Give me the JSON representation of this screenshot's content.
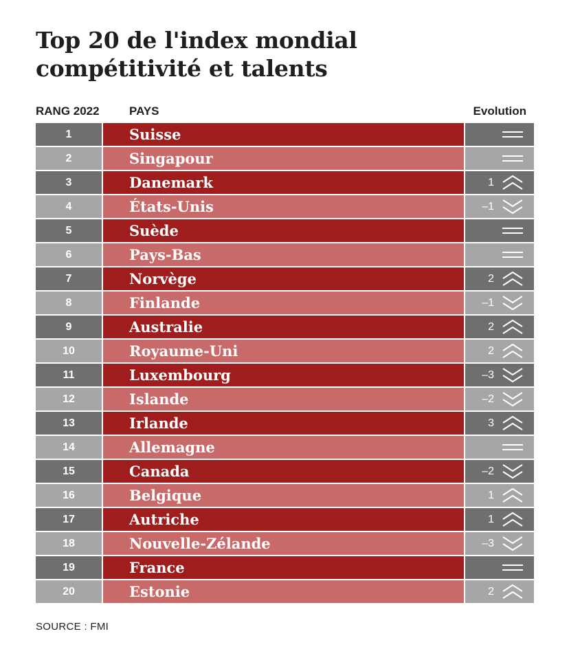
{
  "title_line1": "Top 20 de l'index mondial",
  "title_line2": "compétitivité et talents",
  "headers": {
    "rank": "RANG 2022",
    "country": "PAYS",
    "evolution": "Evolution"
  },
  "source": "SOURCE : FMI",
  "colors": {
    "country_odd": "#a01d1d",
    "country_even": "#c96a6a",
    "gray_odd": "#6f6f6f",
    "gray_even": "#a6a6a6"
  },
  "chart_data": {
    "type": "table",
    "columns": [
      "RANG 2022",
      "PAYS",
      "Evolution"
    ],
    "rows": [
      {
        "rank": "1",
        "country": "Suisse",
        "evolution": "",
        "trend": "same"
      },
      {
        "rank": "2",
        "country": "Singapour",
        "evolution": "",
        "trend": "same"
      },
      {
        "rank": "3",
        "country": "Danemark",
        "evolution": "1",
        "trend": "up"
      },
      {
        "rank": "4",
        "country": "États-Unis",
        "evolution": "–1",
        "trend": "down"
      },
      {
        "rank": "5",
        "country": "Suède",
        "evolution": "",
        "trend": "same"
      },
      {
        "rank": "6",
        "country": "Pays-Bas",
        "evolution": "",
        "trend": "same"
      },
      {
        "rank": "7",
        "country": "Norvège",
        "evolution": "2",
        "trend": "up"
      },
      {
        "rank": "8",
        "country": "Finlande",
        "evolution": "–1",
        "trend": "down"
      },
      {
        "rank": "9",
        "country": "Australie",
        "evolution": "2",
        "trend": "up"
      },
      {
        "rank": "10",
        "country": "Royaume-Uni",
        "evolution": "2",
        "trend": "up"
      },
      {
        "rank": "11",
        "country": "Luxembourg",
        "evolution": "–3",
        "trend": "down"
      },
      {
        "rank": "12",
        "country": "Islande",
        "evolution": "–2",
        "trend": "down"
      },
      {
        "rank": "13",
        "country": "Irlande",
        "evolution": "3",
        "trend": "up"
      },
      {
        "rank": "14",
        "country": "Allemagne",
        "evolution": "",
        "trend": "same"
      },
      {
        "rank": "15",
        "country": "Canada",
        "evolution": "–2",
        "trend": "down"
      },
      {
        "rank": "16",
        "country": "Belgique",
        "evolution": "1",
        "trend": "up"
      },
      {
        "rank": "17",
        "country": "Autriche",
        "evolution": "1",
        "trend": "up"
      },
      {
        "rank": "18",
        "country": "Nouvelle-Zélande",
        "evolution": "–3",
        "trend": "down"
      },
      {
        "rank": "19",
        "country": "France",
        "evolution": "",
        "trend": "same"
      },
      {
        "rank": "20",
        "country": "Estonie",
        "evolution": "2",
        "trend": "up"
      }
    ]
  }
}
